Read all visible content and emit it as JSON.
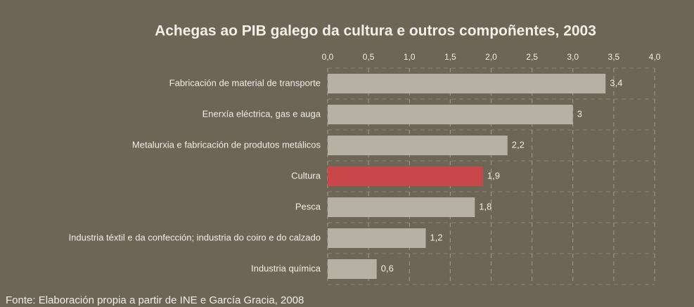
{
  "chart_data": {
    "type": "bar",
    "orientation": "horizontal",
    "title": "Achegas ao PIB galego da cultura e outros compoñentes, 2003",
    "categories": [
      "Fabricación de material de transporte",
      "Enerxía eléctrica, gas e auga",
      "Metalurxia e fabricación de produtos metálicos",
      "Cultura",
      "Pesca",
      "Industria téxtil e da confección; industria do coiro e do calzado",
      "Industria química"
    ],
    "values": [
      3.4,
      3,
      2.2,
      1.9,
      1.8,
      1.2,
      0.6
    ],
    "value_labels": [
      "3,4",
      "3",
      "2,2",
      "1,9",
      "1,8",
      "1,2",
      "0,6"
    ],
    "colors": [
      "#b6b1a4",
      "#b6b1a4",
      "#b6b1a4",
      "#c9474b",
      "#b6b1a4",
      "#b6b1a4",
      "#b6b1a4"
    ],
    "xlim": [
      0,
      4
    ],
    "xticks": [
      {
        "value": 0,
        "label": "0,0"
      },
      {
        "value": 0.5,
        "label": "0,5"
      },
      {
        "value": 1,
        "label": "1,0"
      },
      {
        "value": 1.5,
        "label": "1,5"
      },
      {
        "value": 2,
        "label": "2,0"
      },
      {
        "value": 2.5,
        "label": "2,5"
      },
      {
        "value": 3,
        "label": "3,0"
      },
      {
        "value": 3.5,
        "label": "3,5"
      },
      {
        "value": 4,
        "label": "4,0"
      }
    ],
    "grid": true,
    "source": "Fonte: Elaboración propia a partir de INE e García Gracia, 2008"
  }
}
